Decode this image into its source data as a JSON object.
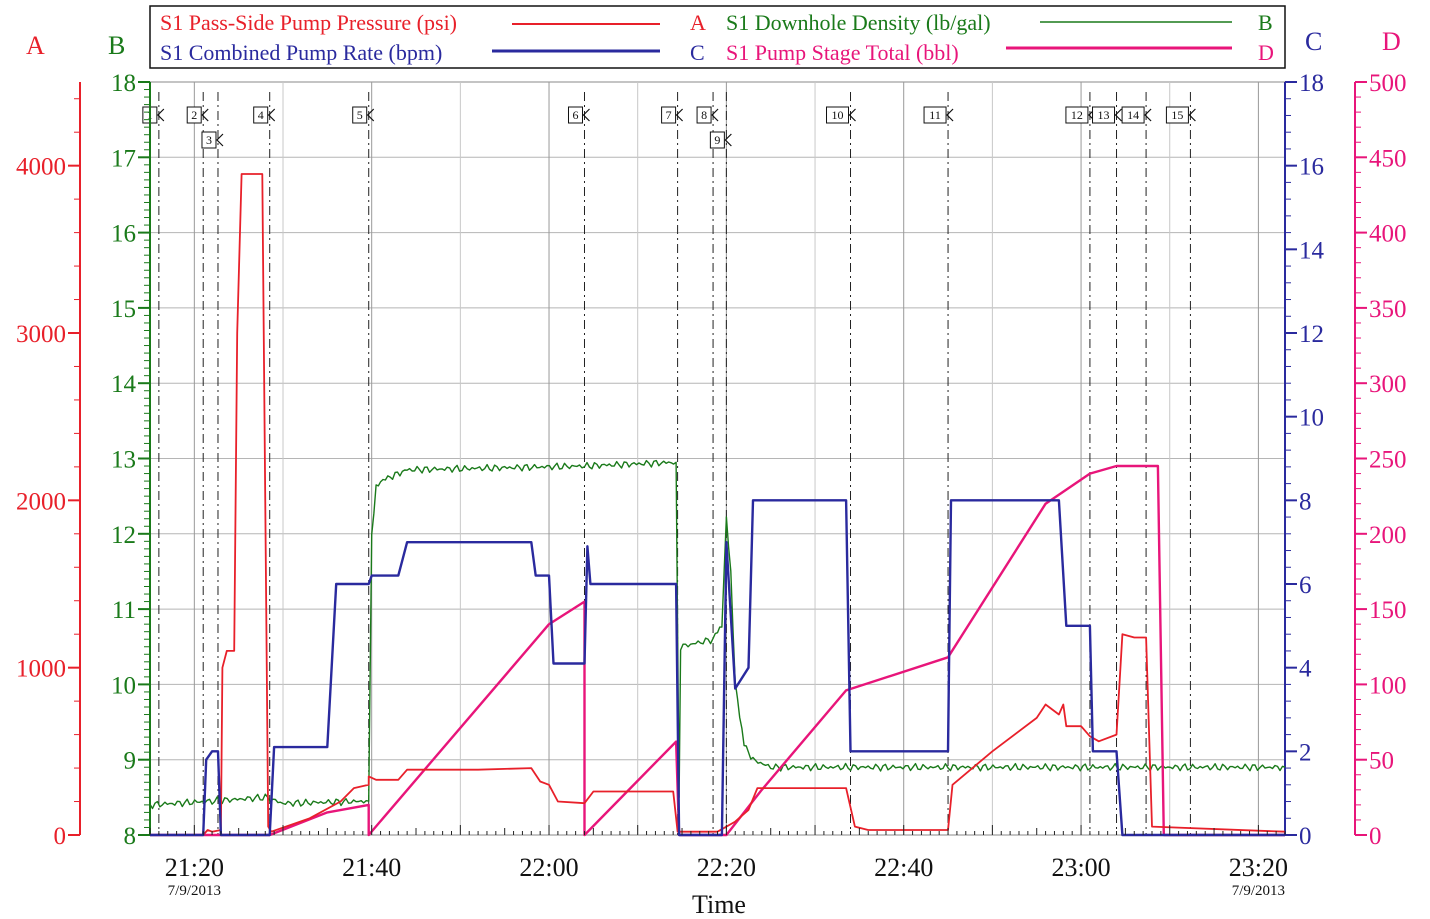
{
  "chart_data": {
    "type": "line",
    "xlabel": "Time",
    "x_range": [
      "21:15",
      "23:23"
    ],
    "x_ticks": [
      {
        "label": "21:20",
        "t": "21:20",
        "date": "7/9/2013"
      },
      {
        "label": "21:40",
        "t": "21:40"
      },
      {
        "label": "22:00",
        "t": "22:00"
      },
      {
        "label": "22:20",
        "t": "22:20"
      },
      {
        "label": "22:40",
        "t": "22:40"
      },
      {
        "label": "23:00",
        "t": "23:00"
      },
      {
        "label": "23:20",
        "t": "23:20",
        "date": "7/9/2013"
      }
    ],
    "axes": [
      {
        "id": "A",
        "title": "A",
        "color": "#e8202a",
        "range": [
          0,
          4500
        ],
        "ticks": [
          "0",
          "1000",
          "2000",
          "3000",
          "4000"
        ],
        "tick_values": [
          0,
          1000,
          2000,
          3000,
          4000
        ]
      },
      {
        "id": "B",
        "title": "B",
        "color": "#1a7a1a",
        "range": [
          8,
          18
        ],
        "ticks": [
          "8",
          "9",
          "10",
          "11",
          "12",
          "13",
          "14",
          "15",
          "16",
          "17",
          "18"
        ],
        "tick_values": [
          8,
          9,
          10,
          11,
          12,
          13,
          14,
          15,
          16,
          17,
          18
        ]
      },
      {
        "id": "C",
        "title": "C",
        "color": "#2a2a9e",
        "range": [
          0,
          18
        ],
        "ticks": [
          "0",
          "2",
          "4",
          "6",
          "8",
          "10",
          "12",
          "14",
          "16",
          "18"
        ],
        "tick_values": [
          0,
          2,
          4,
          6,
          8,
          10,
          12,
          14,
          16,
          18
        ]
      },
      {
        "id": "D",
        "title": "D",
        "color": "#e8157a",
        "range": [
          0,
          500
        ],
        "ticks": [
          "0",
          "50",
          "100",
          "150",
          "200",
          "250",
          "300",
          "350",
          "400",
          "450",
          "500"
        ],
        "tick_values": [
          0,
          50,
          100,
          150,
          200,
          250,
          300,
          350,
          400,
          450,
          500
        ]
      }
    ],
    "legend": [
      {
        "name": "S1 Pass-Side Pump Pressure (psi)",
        "axis": "A",
        "color": "#e8202a"
      },
      {
        "name": "S1 Downhole Density (lb/gal)",
        "axis": "B",
        "color": "#1a7a1a"
      },
      {
        "name": "S1 Combined Pump Rate (bpm)",
        "axis": "C",
        "color": "#2a2a9e"
      },
      {
        "name": "S1 Pump Stage Total (bbl)",
        "axis": "D",
        "color": "#e8157a"
      }
    ],
    "events": [
      {
        "label": "1",
        "t": "21:16:00",
        "row": 0
      },
      {
        "label": "2",
        "t": "21:21:00",
        "row": 0
      },
      {
        "label": "3",
        "t": "21:22:40",
        "row": 1
      },
      {
        "label": "4",
        "t": "21:28:30",
        "row": 0
      },
      {
        "label": "5",
        "t": "21:39:40",
        "row": 0
      },
      {
        "label": "6",
        "t": "22:04:00",
        "row": 0
      },
      {
        "label": "7",
        "t": "22:14:30",
        "row": 0
      },
      {
        "label": "8",
        "t": "22:18:30",
        "row": 0
      },
      {
        "label": "9",
        "t": "22:20:00",
        "row": 1
      },
      {
        "label": "10",
        "t": "22:34:00",
        "row": 0
      },
      {
        "label": "11",
        "t": "22:45:00",
        "row": 0
      },
      {
        "label": "12",
        "t": "23:01:00",
        "row": 0
      },
      {
        "label": "13",
        "t": "23:04:00",
        "row": 0
      },
      {
        "label": "14",
        "t": "23:07:20",
        "row": 0
      },
      {
        "label": "15",
        "t": "23:12:20",
        "row": 0
      }
    ],
    "series": [
      {
        "name": "S1 Pass-Side Pump Pressure (psi)",
        "axis": "A",
        "color": "#e8202a",
        "points": [
          [
            "21:15:00",
            0
          ],
          [
            "21:21:00",
            0
          ],
          [
            "21:21:30",
            30
          ],
          [
            "21:22:00",
            20
          ],
          [
            "21:23:00",
            30
          ],
          [
            "21:23:10",
            1000
          ],
          [
            "21:23:40",
            1100
          ],
          [
            "21:24:30",
            1100
          ],
          [
            "21:24:50",
            3000
          ],
          [
            "21:25:20",
            3950
          ],
          [
            "21:27:40",
            3950
          ],
          [
            "21:28:20",
            50
          ],
          [
            "21:28:40",
            20
          ],
          [
            "21:33:00",
            100
          ],
          [
            "21:36:30",
            200
          ],
          [
            "21:38:00",
            280
          ],
          [
            "21:39:40",
            300
          ],
          [
            "21:39:40",
            350
          ],
          [
            "21:40:30",
            330
          ],
          [
            "21:43:00",
            330
          ],
          [
            "21:44:00",
            390
          ],
          [
            "21:52:00",
            390
          ],
          [
            "21:58:00",
            400
          ],
          [
            "21:59:00",
            320
          ],
          [
            "22:00:00",
            300
          ],
          [
            "22:01:00",
            200
          ],
          [
            "22:04:00",
            190
          ],
          [
            "22:05:00",
            260
          ],
          [
            "22:14:00",
            260
          ],
          [
            "22:14:30",
            20
          ],
          [
            "22:19:00",
            20
          ],
          [
            "22:21:00",
            80
          ],
          [
            "22:22:30",
            150
          ],
          [
            "22:23:30",
            280
          ],
          [
            "22:33:30",
            280
          ],
          [
            "22:34:30",
            50
          ],
          [
            "22:36:00",
            30
          ],
          [
            "22:45:00",
            30
          ],
          [
            "22:45:30",
            300
          ],
          [
            "22:50:00",
            500
          ],
          [
            "22:55:00",
            700
          ],
          [
            "22:56:00",
            780
          ],
          [
            "22:57:30",
            720
          ],
          [
            "22:58:00",
            780
          ],
          [
            "22:58:20",
            650
          ],
          [
            "22:59:40",
            650
          ],
          [
            "23:00:00",
            650
          ],
          [
            "23:01:00",
            590
          ],
          [
            "23:02:00",
            560
          ],
          [
            "23:04:00",
            600
          ],
          [
            "23:04:40",
            1200
          ],
          [
            "23:06:00",
            1180
          ],
          [
            "23:07:20",
            1180
          ],
          [
            "23:08:00",
            50
          ],
          [
            "23:23:00",
            20
          ]
        ]
      },
      {
        "name": "S1 Downhole Density (lb/gal)",
        "axis": "B",
        "color": "#1a7a1a",
        "points": [
          [
            "21:15:00",
            8.4
          ],
          [
            "21:22:00",
            8.45
          ],
          [
            "21:28:00",
            8.5
          ],
          [
            "21:30:00",
            8.42
          ],
          [
            "21:39:40",
            8.45
          ],
          [
            "21:40:00",
            12.0
          ],
          [
            "21:40:30",
            12.6
          ],
          [
            "21:41:00",
            12.7
          ],
          [
            "21:44:00",
            12.85
          ],
          [
            "22:04:00",
            12.9
          ],
          [
            "22:14:20",
            12.95
          ],
          [
            "22:14:40",
            8.5
          ],
          [
            "22:14:50",
            10.5
          ],
          [
            "22:18:30",
            10.6
          ],
          [
            "22:19:30",
            10.8
          ],
          [
            "22:20:00",
            12.2
          ],
          [
            "22:20:30",
            11.5
          ],
          [
            "22:21:00",
            10.0
          ],
          [
            "22:22:00",
            9.2
          ],
          [
            "22:23:00",
            9.0
          ],
          [
            "22:25:00",
            8.9
          ],
          [
            "23:23:00",
            8.9
          ]
        ]
      },
      {
        "name": "S1 Combined Pump Rate (bpm)",
        "axis": "C",
        "color": "#2a2a9e",
        "points": [
          [
            "21:15:00",
            0
          ],
          [
            "21:21:00",
            0
          ],
          [
            "21:21:20",
            1.8
          ],
          [
            "21:22:00",
            2.0
          ],
          [
            "21:22:40",
            2.0
          ],
          [
            "21:23:00",
            0
          ],
          [
            "21:28:30",
            0
          ],
          [
            "21:29:00",
            2.1
          ],
          [
            "21:35:00",
            2.1
          ],
          [
            "21:36:00",
            6.0
          ],
          [
            "21:39:40",
            6.0
          ],
          [
            "21:40:00",
            6.2
          ],
          [
            "21:43:00",
            6.2
          ],
          [
            "21:43:30",
            6.6
          ],
          [
            "21:44:00",
            7.0
          ],
          [
            "21:58:00",
            7.0
          ],
          [
            "21:58:30",
            6.2
          ],
          [
            "22:00:00",
            6.2
          ],
          [
            "22:00:30",
            4.1
          ],
          [
            "22:04:00",
            4.1
          ],
          [
            "22:04:20",
            6.9
          ],
          [
            "22:04:40",
            6.0
          ],
          [
            "22:14:20",
            6.0
          ],
          [
            "22:14:40",
            0
          ],
          [
            "22:19:30",
            0
          ],
          [
            "22:20:00",
            7.0
          ],
          [
            "22:21:00",
            3.5
          ],
          [
            "22:22:30",
            4.0
          ],
          [
            "22:23:00",
            8.0
          ],
          [
            "22:33:30",
            8.0
          ],
          [
            "22:34:00",
            2.0
          ],
          [
            "22:45:00",
            2.0
          ],
          [
            "22:45:20",
            8.0
          ],
          [
            "22:57:30",
            8.0
          ],
          [
            "22:58:20",
            5.0
          ],
          [
            "23:01:00",
            5.0
          ],
          [
            "23:01:20",
            2.0
          ],
          [
            "23:04:00",
            2.0
          ],
          [
            "23:04:40",
            0
          ],
          [
            "23:23:00",
            0
          ]
        ]
      },
      {
        "name": "S1 Pump Stage Total (bbl)",
        "axis": "D",
        "color": "#e8157a",
        "points": [
          [
            "21:15:00",
            0
          ],
          [
            "21:28:30",
            0
          ],
          [
            "21:35:00",
            15
          ],
          [
            "21:39:40",
            20
          ],
          [
            "21:39:40",
            0
          ],
          [
            "22:00:00",
            140
          ],
          [
            "22:04:00",
            155
          ],
          [
            "22:04:00",
            0
          ],
          [
            "22:14:20",
            62
          ],
          [
            "22:14:40",
            0
          ],
          [
            "22:20:00",
            0
          ],
          [
            "22:24:00",
            30
          ],
          [
            "22:33:30",
            96
          ],
          [
            "22:45:00",
            118
          ],
          [
            "22:56:00",
            220
          ],
          [
            "23:01:00",
            240
          ],
          [
            "23:04:00",
            245
          ],
          [
            "23:08:40",
            245
          ],
          [
            "23:09:20",
            0
          ],
          [
            "23:23:00",
            0
          ]
        ]
      }
    ]
  }
}
